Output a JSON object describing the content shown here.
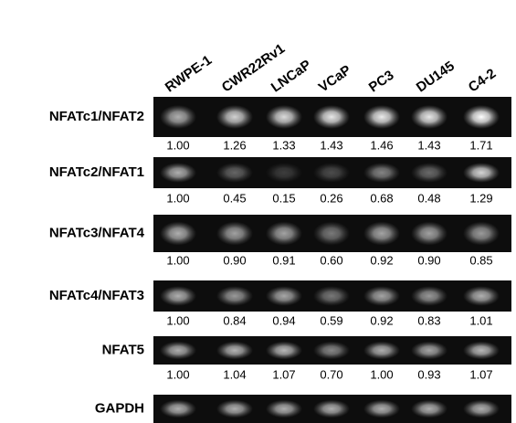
{
  "columns": [
    "RWPE-1",
    "CWR22Rv1",
    "LNCaP",
    "VCaP",
    "PC3",
    "DU145",
    "C4-2"
  ],
  "rows": [
    {
      "label": "NFATc1/NFAT2",
      "values": [
        "1.00",
        "1.26",
        "1.33",
        "1.43",
        "1.46",
        "1.43",
        "1.71"
      ]
    },
    {
      "label": "NFATc2/NFAT1",
      "values": [
        "1.00",
        "0.45",
        "0.15",
        "0.26",
        "0.68",
        "0.48",
        "1.29"
      ]
    },
    {
      "label": "NFATc3/NFAT4",
      "values": [
        "1.00",
        "0.90",
        "0.91",
        "0.60",
        "0.92",
        "0.90",
        "0.85"
      ]
    },
    {
      "label": "NFATc4/NFAT3",
      "values": [
        "1.00",
        "0.84",
        "0.94",
        "0.59",
        "0.92",
        "0.83",
        "1.01"
      ]
    },
    {
      "label": "NFAT5",
      "values": [
        "1.00",
        "1.04",
        "1.07",
        "0.70",
        "1.00",
        "0.93",
        "1.07"
      ]
    },
    {
      "label": "GAPDH"
    }
  ]
}
